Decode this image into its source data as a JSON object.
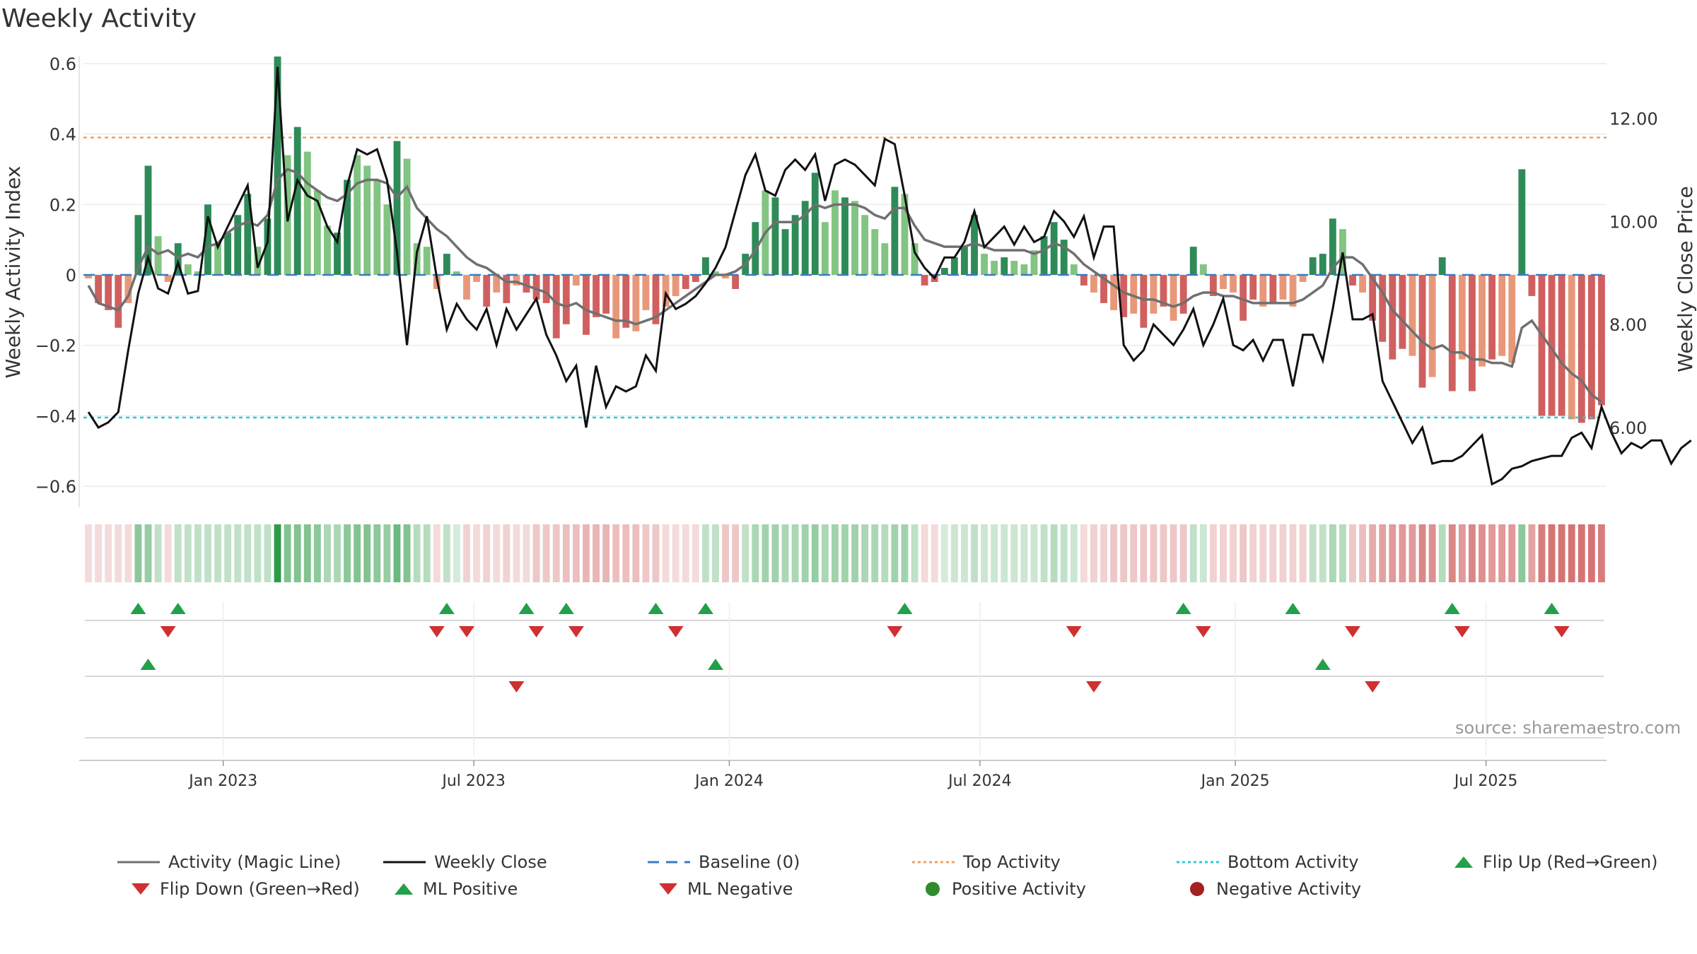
{
  "title": "Weekly Activity",
  "source": "source: sharemaestro.com",
  "colors": {
    "grid": "#ececec",
    "pos_strong": "#2e8b57",
    "pos_light": "#82c482",
    "neg_strong": "#d06060",
    "neg_light": "#e8987a",
    "magic": "#707070",
    "close": "#111111",
    "top": "#f0a060",
    "bottom": "#30c8d8",
    "baseline": "#3b7bbf",
    "flip_up": "#22a04a",
    "flip_down": "#d03030"
  },
  "chart_data": {
    "type": "bar",
    "title": "Weekly Activity",
    "ylabel": "Weekly Activity Index",
    "y2label": "Weekly Close Price",
    "ylim": [
      -0.66,
      0.62
    ],
    "y2lim": [
      4.45,
      13.2
    ],
    "yticks": [
      0.6,
      0.4,
      0.2,
      0,
      -0.2,
      -0.4,
      -0.6
    ],
    "yticklabels": [
      "0.6",
      "0.4",
      "0.2",
      "0",
      "−0.2",
      "−0.4",
      "−0.6"
    ],
    "y2ticks": [
      12.0,
      10.0,
      8.0,
      6.0
    ],
    "y2ticklabels": [
      "12.00",
      "10.00",
      "8.00",
      "6.00"
    ],
    "top_activity": 0.39,
    "bottom_activity": -0.405,
    "xlim": [
      0,
      158
    ],
    "xticks": [
      14.5,
      40.5,
      67,
      93,
      119.5,
      145.5
    ],
    "xticklabels": [
      "Jan 2023",
      "Jul 2023",
      "Jan 2024",
      "Jul 2024",
      "Jan 2025",
      "Jul 2025"
    ],
    "weekly_activity": [
      -0.01,
      -0.08,
      -0.1,
      -0.15,
      -0.08,
      0.17,
      0.31,
      0.11,
      -0.02,
      0.09,
      0.03,
      0.01,
      0.2,
      0.09,
      0.12,
      0.17,
      0.23,
      0.08,
      0.16,
      0.62,
      0.34,
      0.42,
      0.35,
      0.24,
      0.14,
      0.12,
      0.27,
      0.34,
      0.31,
      0.27,
      0.2,
      0.38,
      0.33,
      0.09,
      0.08,
      -0.04,
      0.06,
      0.01,
      -0.07,
      -0.02,
      -0.09,
      -0.05,
      -0.08,
      -0.03,
      -0.05,
      -0.07,
      -0.08,
      -0.18,
      -0.14,
      -0.03,
      -0.17,
      -0.12,
      -0.11,
      -0.18,
      -0.15,
      -0.16,
      -0.1,
      -0.14,
      -0.09,
      -0.06,
      -0.04,
      -0.02,
      0.05,
      0.01,
      -0.01,
      -0.04,
      0.06,
      0.15,
      0.24,
      0.22,
      0.13,
      0.17,
      0.21,
      0.29,
      0.15,
      0.24,
      0.22,
      0.21,
      0.17,
      0.13,
      0.09,
      0.25,
      0.23,
      0.09,
      -0.03,
      -0.02,
      0.02,
      0.05,
      0.08,
      0.17,
      0.06,
      0.04,
      0.05,
      0.04,
      0.03,
      0.07,
      0.11,
      0.15,
      0.1,
      0.03,
      -0.03,
      -0.05,
      -0.08,
      -0.1,
      -0.12,
      -0.11,
      -0.15,
      -0.11,
      -0.09,
      -0.13,
      -0.11,
      0.08,
      0.03,
      -0.06,
      -0.04,
      -0.05,
      -0.13,
      -0.07,
      -0.09,
      -0.08,
      -0.07,
      -0.09,
      -0.02,
      0.05,
      0.06,
      0.16,
      0.13,
      -0.03,
      -0.05,
      -0.13,
      -0.19,
      -0.24,
      -0.21,
      -0.23,
      -0.32,
      -0.29,
      0.05,
      -0.33,
      -0.24,
      -0.33,
      -0.26,
      -0.24,
      -0.23,
      -0.25,
      0.3,
      -0.06,
      -0.4,
      -0.4,
      -0.4,
      -0.41,
      -0.42,
      -0.41,
      -0.37
    ],
    "bar_shade": [
      "l",
      "s",
      "s",
      "s",
      "l",
      "s",
      "s",
      "l",
      "l",
      "s",
      "l",
      "l",
      "s",
      "l",
      "s",
      "s",
      "s",
      "l",
      "s",
      "s",
      "l",
      "s",
      "l",
      "l",
      "l",
      "s",
      "s",
      "l",
      "l",
      "l",
      "l",
      "s",
      "l",
      "l",
      "l",
      "l",
      "s",
      "l",
      "l",
      "l",
      "s",
      "l",
      "s",
      "l",
      "s",
      "s",
      "s",
      "s",
      "s",
      "l",
      "s",
      "s",
      "s",
      "l",
      "s",
      "l",
      "l",
      "s",
      "l",
      "l",
      "s",
      "s",
      "s",
      "l",
      "l",
      "s",
      "s",
      "s",
      "l",
      "s",
      "s",
      "s",
      "s",
      "s",
      "l",
      "l",
      "s",
      "l",
      "l",
      "l",
      "l",
      "s",
      "l",
      "l",
      "s",
      "s",
      "s",
      "s",
      "s",
      "s",
      "l",
      "l",
      "s",
      "l",
      "l",
      "l",
      "s",
      "s",
      "s",
      "l",
      "s",
      "l",
      "s",
      "l",
      "s",
      "l",
      "s",
      "l",
      "s",
      "l",
      "s",
      "s",
      "l",
      "s",
      "l",
      "l",
      "s",
      "s",
      "l",
      "s",
      "l",
      "l",
      "l",
      "s",
      "s",
      "s",
      "l",
      "s",
      "l",
      "s",
      "s",
      "s",
      "s",
      "l",
      "s",
      "l",
      "s",
      "s",
      "l",
      "s",
      "l",
      "s",
      "l",
      "l",
      "s",
      "s",
      "s",
      "s",
      "s",
      "l",
      "s",
      "s",
      "s",
      "s",
      "l",
      "l"
    ],
    "magic_line": [
      -0.03,
      -0.08,
      -0.09,
      -0.1,
      -0.06,
      0.02,
      0.08,
      0.06,
      0.07,
      0.05,
      0.06,
      0.05,
      0.08,
      0.09,
      0.12,
      0.14,
      0.15,
      0.14,
      0.17,
      0.27,
      0.3,
      0.29,
      0.26,
      0.24,
      0.22,
      0.21,
      0.23,
      0.26,
      0.27,
      0.27,
      0.26,
      0.22,
      0.25,
      0.19,
      0.16,
      0.13,
      0.11,
      0.08,
      0.05,
      0.03,
      0.02,
      0.0,
      -0.02,
      -0.02,
      -0.03,
      -0.04,
      -0.05,
      -0.08,
      -0.09,
      -0.08,
      -0.1,
      -0.11,
      -0.12,
      -0.13,
      -0.13,
      -0.14,
      -0.13,
      -0.12,
      -0.1,
      -0.08,
      -0.06,
      -0.04,
      -0.02,
      0.0,
      0.0,
      0.01,
      0.03,
      0.07,
      0.12,
      0.15,
      0.15,
      0.15,
      0.17,
      0.2,
      0.19,
      0.2,
      0.2,
      0.2,
      0.19,
      0.17,
      0.16,
      0.19,
      0.19,
      0.14,
      0.1,
      0.09,
      0.08,
      0.08,
      0.08,
      0.09,
      0.08,
      0.07,
      0.07,
      0.07,
      0.07,
      0.06,
      0.07,
      0.09,
      0.08,
      0.06,
      0.03,
      0.01,
      -0.01,
      -0.03,
      -0.05,
      -0.06,
      -0.07,
      -0.07,
      -0.08,
      -0.09,
      -0.08,
      -0.06,
      -0.05,
      -0.05,
      -0.06,
      -0.06,
      -0.07,
      -0.08,
      -0.08,
      -0.08,
      -0.08,
      -0.08,
      -0.07,
      -0.05,
      -0.03,
      0.02,
      0.05,
      0.05,
      0.03,
      -0.01,
      -0.05,
      -0.1,
      -0.13,
      -0.16,
      -0.19,
      -0.21,
      -0.2,
      -0.22,
      -0.22,
      -0.24,
      -0.24,
      -0.25,
      -0.25,
      -0.26,
      -0.15,
      -0.13,
      -0.17,
      -0.21,
      -0.25,
      -0.28,
      -0.3,
      -0.34,
      -0.36
    ],
    "weekly_close": [
      6.3,
      6.0,
      6.1,
      6.3,
      7.5,
      8.6,
      9.3,
      8.7,
      8.6,
      9.2,
      8.6,
      8.65,
      10.1,
      9.5,
      9.9,
      10.3,
      10.7,
      9.1,
      9.6,
      13.0,
      10.0,
      10.8,
      10.5,
      10.4,
      9.9,
      9.6,
      10.7,
      11.4,
      11.3,
      11.4,
      10.8,
      9.4,
      7.6,
      9.4,
      10.1,
      8.9,
      7.9,
      8.4,
      8.1,
      7.9,
      8.3,
      7.6,
      8.3,
      7.9,
      8.2,
      8.5,
      7.8,
      7.4,
      6.9,
      7.2,
      6.0,
      7.2,
      6.4,
      6.8,
      6.7,
      6.8,
      7.4,
      7.1,
      8.6,
      8.3,
      8.4,
      8.55,
      8.8,
      9.1,
      9.5,
      10.2,
      10.9,
      11.3,
      10.6,
      10.5,
      11.0,
      11.2,
      11.0,
      11.3,
      10.4,
      11.1,
      11.2,
      11.1,
      10.9,
      10.7,
      11.6,
      11.5,
      10.5,
      9.4,
      9.1,
      8.9,
      9.3,
      9.3,
      9.6,
      10.2,
      9.5,
      9.7,
      9.9,
      9.55,
      9.9,
      9.6,
      9.7,
      10.2,
      10.0,
      9.7,
      10.1,
      9.3,
      9.9,
      9.9,
      7.6,
      7.3,
      7.5,
      8.0,
      7.8,
      7.6,
      7.9,
      8.3,
      7.6,
      8.0,
      8.5,
      7.6,
      7.5,
      7.7,
      7.3,
      7.7,
      7.7,
      6.8,
      7.8,
      7.8,
      7.3,
      8.3,
      9.4,
      8.1,
      8.1,
      8.2,
      6.9,
      6.5,
      6.1,
      5.7,
      6.0,
      5.3,
      5.35,
      5.35,
      5.45,
      5.65,
      5.85,
      4.9,
      5.0,
      5.2,
      5.25,
      5.35,
      5.4,
      5.45,
      5.45,
      5.8,
      5.9,
      5.6,
      6.4,
      5.9,
      5.5,
      5.7,
      5.6,
      5.75,
      5.75,
      5.3,
      5.6,
      5.75
    ],
    "heat_intensity": [
      0.2,
      0.2,
      0.2,
      0.2,
      0.2,
      0.55,
      0.5,
      0.3,
      0.2,
      0.3,
      0.3,
      0.3,
      0.3,
      0.3,
      0.3,
      0.3,
      0.3,
      0.3,
      0.3,
      1.0,
      0.6,
      0.6,
      0.6,
      0.55,
      0.4,
      0.4,
      0.55,
      0.6,
      0.6,
      0.55,
      0.5,
      0.7,
      0.6,
      0.35,
      0.35,
      0.2,
      0.3,
      0.2,
      0.25,
      0.2,
      0.25,
      0.2,
      0.25,
      0.2,
      0.2,
      0.3,
      0.3,
      0.3,
      0.35,
      0.35,
      0.4,
      0.4,
      0.4,
      0.35,
      0.35,
      0.35,
      0.3,
      0.3,
      0.2,
      0.2,
      0.2,
      0.2,
      0.3,
      0.3,
      0.3,
      0.3,
      0.3,
      0.4,
      0.45,
      0.45,
      0.4,
      0.4,
      0.45,
      0.5,
      0.4,
      0.45,
      0.45,
      0.45,
      0.4,
      0.4,
      0.35,
      0.45,
      0.45,
      0.3,
      0.2,
      0.2,
      0.2,
      0.25,
      0.25,
      0.3,
      0.25,
      0.25,
      0.25,
      0.25,
      0.25,
      0.25,
      0.3,
      0.35,
      0.3,
      0.25,
      0.2,
      0.25,
      0.25,
      0.3,
      0.3,
      0.3,
      0.3,
      0.3,
      0.3,
      0.3,
      0.3,
      0.3,
      0.25,
      0.25,
      0.25,
      0.25,
      0.3,
      0.25,
      0.25,
      0.25,
      0.25,
      0.25,
      0.25,
      0.3,
      0.3,
      0.4,
      0.35,
      0.3,
      0.35,
      0.45,
      0.5,
      0.55,
      0.55,
      0.55,
      0.65,
      0.6,
      0.35,
      0.65,
      0.55,
      0.65,
      0.6,
      0.55,
      0.55,
      0.55,
      0.55,
      0.5,
      0.7,
      0.75,
      0.75,
      0.75,
      0.75,
      0.75,
      0.7
    ],
    "flip_up": [
      5,
      9,
      36,
      44,
      48,
      57,
      62,
      82,
      110,
      121,
      137,
      147
    ],
    "flip_down": [
      8,
      35,
      38,
      45,
      49,
      59,
      81,
      99,
      112,
      127,
      138,
      148
    ],
    "ml_positive": [
      6,
      63,
      124
    ],
    "ml_negative": [
      43,
      101,
      129
    ],
    "legend": [
      {
        "key": "magic",
        "label": "Activity (Magic Line)"
      },
      {
        "key": "close",
        "label": "Weekly Close"
      },
      {
        "key": "baseline",
        "label": "Baseline (0)"
      },
      {
        "key": "top",
        "label": "Top Activity"
      },
      {
        "key": "bottom",
        "label": "Bottom Activity"
      },
      {
        "key": "flipup",
        "label": "Flip Up (Red→Green)"
      },
      {
        "key": "flipdown",
        "label": "Flip Down (Green→Red)"
      },
      {
        "key": "mlpos",
        "label": "ML Positive"
      },
      {
        "key": "mlneg",
        "label": "ML Negative"
      },
      {
        "key": "posact",
        "label": "Positive Activity"
      },
      {
        "key": "negact",
        "label": "Negative Activity"
      }
    ]
  }
}
